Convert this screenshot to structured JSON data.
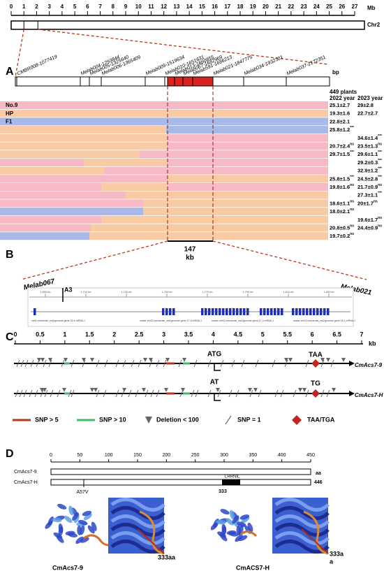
{
  "panel_labels": [
    "A",
    "B",
    "C",
    "D"
  ],
  "chromosome": {
    "ticks": [
      0,
      1,
      2,
      3,
      4,
      5,
      6,
      7,
      8,
      9,
      10,
      11,
      12,
      13,
      14,
      15,
      16,
      17,
      18,
      19,
      20,
      21,
      22,
      23,
      24,
      25,
      26,
      27
    ],
    "lim": [
      0,
      27
    ],
    "unit": "Mb",
    "name": "Chr2"
  },
  "map": {
    "markers": [
      "CMBR008-1077419",
      "Melab004-1293844",
      "Melab005-1325640",
      "Melab006-1365409",
      "Melab009-1519634",
      "Melab010-1651631",
      "Melab013-1660855",
      "Melab067-1682969",
      "Melab591-1686213",
      "Melab021-1847775",
      "Melab034-1932321",
      "Melab037-2172351"
    ],
    "unit": "bp",
    "population": "449 plants",
    "headers": [
      "2022 year",
      "2023 year"
    ],
    "rows": [
      {
        "label": "No.9",
        "cells": [
          {
            "value": "25.1±2.7"
          },
          {
            "value": "29±2.8"
          }
        ]
      },
      {
        "label": "HP",
        "cells": [
          {
            "value": "19.3±1.6"
          },
          {
            "value": "22.7±2.7"
          }
        ]
      },
      {
        "label": "F1",
        "cells": [
          {
            "value": "22.8±2.1"
          },
          null
        ]
      },
      {
        "cells": [
          {
            "value": "25.8±1.2",
            "sig": "***"
          },
          null
        ]
      },
      {
        "cells": [
          null,
          {
            "value": "34.6±1.4",
            "sig": "***"
          }
        ]
      },
      {
        "cells": [
          {
            "value": "20.7±2.4",
            "sig": "ns"
          },
          {
            "value": "23.5±1.3",
            "sig": "ns"
          }
        ]
      },
      {
        "cells": [
          {
            "value": "29.7±1.5",
            "sig": "***"
          },
          {
            "value": "29.6±1.1",
            "sig": "***"
          }
        ]
      },
      {
        "cells": [
          null,
          {
            "value": "29.2±0.3",
            "sig": "***"
          }
        ]
      },
      {
        "cells": [
          null,
          {
            "value": "32.9±1.2",
            "sig": "***"
          }
        ]
      },
      {
        "cells": [
          {
            "value": "25.8±1.5",
            "sig": "***"
          },
          {
            "value": "24.5±2.8",
            "sig": "***"
          }
        ]
      },
      {
        "cells": [
          {
            "value": "19.8±1.6",
            "sig": "ns"
          },
          {
            "value": "21.7±0.9",
            "sig": "ns"
          }
        ]
      },
      {
        "cells": [
          null,
          {
            "value": "27.3±1.1",
            "sig": "***"
          }
        ]
      },
      {
        "cells": [
          {
            "value": "18.6±1.1",
            "sig": "ns"
          },
          {
            "value": "20±1.7",
            "sig": "ns"
          }
        ]
      },
      {
        "cells": [
          {
            "value": "18.0±2.1",
            "sig": "ns"
          },
          null
        ]
      },
      {
        "cells": [
          null,
          {
            "value": "19.6±1.7",
            "sig": "ns"
          }
        ]
      },
      {
        "cells": [
          {
            "value": "20.8±0.5",
            "sig": "ns"
          },
          {
            "value": "24.4±0.9",
            "sig": "ns"
          }
        ]
      },
      {
        "cells": [
          {
            "value": "19.7±0.2",
            "sig": "ns"
          },
          null
        ]
      }
    ]
  },
  "region": {
    "size": "147",
    "unit": "kb"
  },
  "browser": {
    "left_marker": "Melab067",
    "right_marker": "Melab021",
    "locus": "A3",
    "ticks": [
      "1,690 kb",
      "1,710 kb",
      "1,730 kb",
      "1,750 kb",
      "1,770 kb",
      "1,790 kb",
      "1,810 kb",
      "1,830 kb"
    ],
    "genes": [
      "mel2-exonerate_est2genome-gene-16.4-mRNA-1",
      "maker-chr02-exonerate_est2genome-gene-17.5-mRNA-1",
      "maker-chr02-exonerate_est2genome-gene-17.2-mRNA-1",
      "maker-chr02-exonerate_est2genome-gene-18.1-mRNA-1"
    ]
  },
  "gene_structure": {
    "ticks": [
      0,
      0.5,
      1,
      1.5,
      2,
      2.5,
      3,
      3.5,
      4,
      4.5,
      5,
      5.5,
      6,
      6.5,
      7
    ],
    "lim": [
      0,
      7
    ],
    "unit": "kb",
    "alleles": [
      {
        "name": "CmAcs7-9",
        "start": "ATG",
        "stop": "TAA"
      },
      {
        "name": "CmAcs7-H",
        "start": "AT",
        "stop": "TG"
      }
    ],
    "legend": [
      "SNP > 5",
      "SNP > 10",
      "Deletion < 100",
      "SNP = 1",
      "TAA/TGA"
    ]
  },
  "protein": {
    "ticks": [
      0,
      50,
      100,
      150,
      200,
      250,
      300,
      350,
      400,
      450
    ],
    "lim": [
      0,
      450
    ],
    "unit": "aa",
    "proteins": [
      {
        "name": "CmAcs7-9"
      },
      {
        "name": "CmAcs7-H",
        "length": "446",
        "insert": "LRRNIL",
        "mutation": "A57V",
        "site": "333"
      }
    ],
    "captions": [
      {
        "name": "CmAcs7-9",
        "site": [
          "333aa"
        ]
      },
      {
        "name": "CmACS7-H",
        "site": [
          "333a",
          "a"
        ]
      }
    ]
  }
}
